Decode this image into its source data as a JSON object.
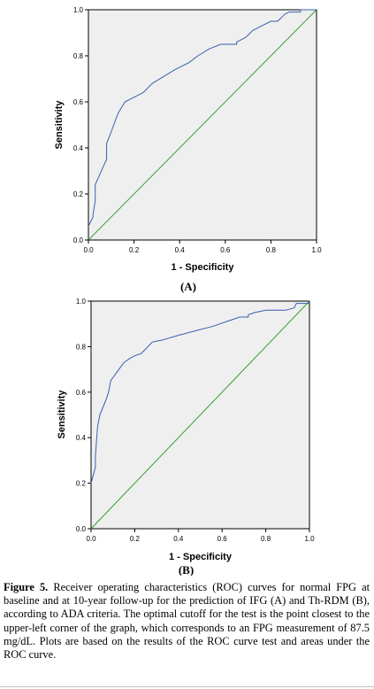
{
  "chart_data": [
    {
      "type": "line",
      "panel_label": "(A)",
      "xlabel": "1 - Specificity",
      "ylabel": "Sensitivity",
      "xlim": [
        0,
        1
      ],
      "ylim": [
        0,
        1
      ],
      "xticks": [
        "0.0",
        "0.2",
        "0.4",
        "0.6",
        "0.8",
        "1.0"
      ],
      "yticks": [
        "0.0",
        "0.2",
        "0.4",
        "0.6",
        "0.8",
        "1.0"
      ],
      "grid": false,
      "reference_line": true,
      "plot_background": "#efefef",
      "curve_color": "#3b5fb0",
      "reference_color": "#39a035",
      "series": [
        {
          "x": [
            0,
            0.02,
            0.02,
            0.03,
            0.03,
            0.07,
            0.08,
            0.08,
            0.1,
            0.13,
            0.16,
            0.18,
            0.2,
            0.24,
            0.28,
            0.33,
            0.38,
            0.44,
            0.48,
            0.53,
            0.58,
            0.65,
            0.65,
            0.69,
            0.71,
            0.72,
            0.76,
            0.8,
            0.83,
            0.84,
            0.85,
            0.86,
            0.88,
            0.93,
            0.93,
            1
          ],
          "y": [
            0.06,
            0.1,
            0.11,
            0.17,
            0.24,
            0.33,
            0.35,
            0.42,
            0.47,
            0.55,
            0.6,
            0.61,
            0.62,
            0.64,
            0.68,
            0.71,
            0.74,
            0.77,
            0.8,
            0.83,
            0.85,
            0.85,
            0.86,
            0.88,
            0.9,
            0.91,
            0.93,
            0.95,
            0.95,
            0.96,
            0.97,
            0.98,
            0.99,
            0.99,
            1.0,
            1.0
          ]
        }
      ]
    },
    {
      "type": "line",
      "panel_label": "(B)",
      "xlabel": "1 - Specificity",
      "ylabel": "Sensitivity",
      "xlim": [
        0,
        1
      ],
      "ylim": [
        0,
        1
      ],
      "xticks": [
        "0.0",
        "0.2",
        "0.4",
        "0.6",
        "0.8",
        "1.0"
      ],
      "yticks": [
        "0.0",
        "0.2",
        "0.4",
        "0.6",
        "0.8",
        "1.0"
      ],
      "grid": false,
      "reference_line": true,
      "plot_background": "#efefef",
      "curve_color": "#3b5fb0",
      "reference_color": "#39a035",
      "series": [
        {
          "x": [
            0,
            0.02,
            0.02,
            0.03,
            0.04,
            0.07,
            0.08,
            0.09,
            0.12,
            0.15,
            0.18,
            0.2,
            0.23,
            0.25,
            0.28,
            0.33,
            0.4,
            0.48,
            0.56,
            0.62,
            0.65,
            0.68,
            0.72,
            0.72,
            0.75,
            0.8,
            0.83,
            0.85,
            0.89,
            0.93,
            0.94,
            1
          ],
          "y": [
            0.2,
            0.27,
            0.32,
            0.45,
            0.5,
            0.57,
            0.6,
            0.65,
            0.69,
            0.73,
            0.75,
            0.76,
            0.77,
            0.79,
            0.82,
            0.83,
            0.85,
            0.87,
            0.89,
            0.91,
            0.92,
            0.93,
            0.93,
            0.94,
            0.95,
            0.96,
            0.96,
            0.96,
            0.96,
            0.97,
            0.99,
            0.99
          ]
        }
      ]
    }
  ],
  "caption": {
    "label": "Figure 5.",
    "text": " Receiver operating characteristics (ROC) curves for normal FPG at baseline and at 10-year follow-up for the prediction of IFG (A) and Th-RDM (B), according to ADA criteria. The optimal cutoff for the test is the point closest to the upper-left corner of the graph, which corresponds to an FPG measurement of 87.5 mg/dL. Plots are based on the results of the ROC curve test and areas under the ROC curve."
  }
}
